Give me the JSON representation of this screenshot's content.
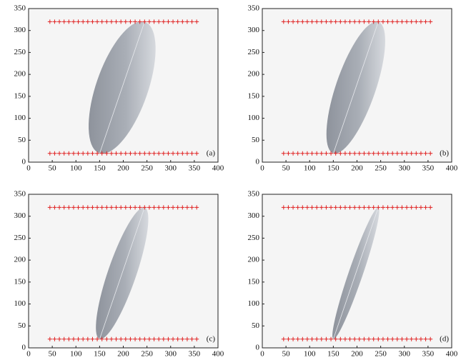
{
  "chart_data": [
    {
      "type": "scatter",
      "label": "(a)",
      "xlim": [
        0,
        400
      ],
      "ylim": [
        0,
        350
      ],
      "xticks": [
        0,
        50,
        100,
        150,
        200,
        250,
        300,
        350,
        400
      ],
      "yticks": [
        0,
        50,
        100,
        150,
        200,
        250,
        300,
        350
      ],
      "series": [
        {
          "color": "#e02020",
          "x": [
            45,
            55,
            65,
            75,
            85,
            95,
            105,
            115,
            125,
            135,
            145,
            155,
            165,
            175,
            185,
            195,
            205,
            215,
            225,
            235,
            245,
            255,
            265,
            275,
            285,
            295,
            305,
            315,
            325,
            335,
            345,
            355
          ],
          "values": [
            320,
            320,
            320,
            320,
            320,
            320,
            320,
            320,
            320,
            320,
            320,
            320,
            320,
            320,
            320,
            320,
            320,
            320,
            320,
            320,
            320,
            320,
            320,
            320,
            320,
            320,
            320,
            320,
            320,
            320,
            320,
            320
          ]
        },
        {
          "color": "#e02020",
          "x": [
            45,
            55,
            65,
            75,
            85,
            95,
            105,
            115,
            125,
            135,
            145,
            155,
            165,
            175,
            185,
            195,
            205,
            215,
            225,
            235,
            245,
            255,
            265,
            275,
            285,
            295,
            305,
            315,
            325,
            335,
            345,
            355
          ],
          "values": [
            20,
            20,
            20,
            20,
            20,
            20,
            20,
            20,
            20,
            20,
            20,
            20,
            20,
            20,
            20,
            20,
            20,
            20,
            20,
            20,
            20,
            20,
            20,
            20,
            20,
            20,
            20,
            20,
            20,
            20,
            20,
            20
          ]
        }
      ],
      "line": {
        "x": [
          150,
          245
        ],
        "values": [
          20,
          320
        ]
      },
      "ellipse": {
        "cx": 197.5,
        "cy": 170,
        "semi_major": 157,
        "semi_minor": 55
      }
    },
    {
      "type": "scatter",
      "label": "(b)",
      "xlim": [
        0,
        400
      ],
      "ylim": [
        0,
        350
      ],
      "xticks": [
        0,
        50,
        100,
        150,
        200,
        250,
        300,
        350,
        400
      ],
      "yticks": [
        0,
        50,
        100,
        150,
        200,
        250,
        300,
        350
      ],
      "series": [
        {
          "color": "#e02020",
          "x": [
            45,
            55,
            65,
            75,
            85,
            95,
            105,
            115,
            125,
            135,
            145,
            155,
            165,
            175,
            185,
            195,
            205,
            215,
            225,
            235,
            245,
            255,
            265,
            275,
            285,
            295,
            305,
            315,
            325,
            335,
            345,
            355
          ],
          "values": [
            320,
            320,
            320,
            320,
            320,
            320,
            320,
            320,
            320,
            320,
            320,
            320,
            320,
            320,
            320,
            320,
            320,
            320,
            320,
            320,
            320,
            320,
            320,
            320,
            320,
            320,
            320,
            320,
            320,
            320,
            320,
            320
          ]
        },
        {
          "color": "#e02020",
          "x": [
            45,
            55,
            65,
            75,
            85,
            95,
            105,
            115,
            125,
            135,
            145,
            155,
            165,
            175,
            185,
            195,
            205,
            215,
            225,
            235,
            245,
            255,
            265,
            275,
            285,
            295,
            305,
            315,
            325,
            335,
            345,
            355
          ],
          "values": [
            20,
            20,
            20,
            20,
            20,
            20,
            20,
            20,
            20,
            20,
            20,
            20,
            20,
            20,
            20,
            20,
            20,
            20,
            20,
            20,
            20,
            20,
            20,
            20,
            20,
            20,
            20,
            20,
            20,
            20,
            20,
            20
          ]
        }
      ],
      "line": {
        "x": [
          150,
          245
        ],
        "values": [
          20,
          320
        ]
      },
      "ellipse": {
        "cx": 197.5,
        "cy": 170,
        "semi_major": 157,
        "semi_minor": 42
      }
    },
    {
      "type": "scatter",
      "label": "(c)",
      "xlim": [
        0,
        400
      ],
      "ylim": [
        0,
        350
      ],
      "xticks": [
        0,
        50,
        100,
        150,
        200,
        250,
        300,
        350,
        400
      ],
      "yticks": [
        0,
        50,
        100,
        150,
        200,
        250,
        300,
        350
      ],
      "series": [
        {
          "color": "#e02020",
          "x": [
            45,
            55,
            65,
            75,
            85,
            95,
            105,
            115,
            125,
            135,
            145,
            155,
            165,
            175,
            185,
            195,
            205,
            215,
            225,
            235,
            245,
            255,
            265,
            275,
            285,
            295,
            305,
            315,
            325,
            335,
            345,
            355
          ],
          "values": [
            320,
            320,
            320,
            320,
            320,
            320,
            320,
            320,
            320,
            320,
            320,
            320,
            320,
            320,
            320,
            320,
            320,
            320,
            320,
            320,
            320,
            320,
            320,
            320,
            320,
            320,
            320,
            320,
            320,
            320,
            320,
            320
          ]
        },
        {
          "color": "#e02020",
          "x": [
            45,
            55,
            65,
            75,
            85,
            95,
            105,
            115,
            125,
            135,
            145,
            155,
            165,
            175,
            185,
            195,
            205,
            215,
            225,
            235,
            245,
            255,
            265,
            275,
            285,
            295,
            305,
            315,
            325,
            335,
            345,
            355
          ],
          "values": [
            20,
            20,
            20,
            20,
            20,
            20,
            20,
            20,
            20,
            20,
            20,
            20,
            20,
            20,
            20,
            20,
            20,
            20,
            20,
            20,
            20,
            20,
            20,
            20,
            20,
            20,
            20,
            20,
            20,
            20,
            20,
            20
          ]
        }
      ],
      "line": {
        "x": [
          150,
          245
        ],
        "values": [
          20,
          320
        ]
      },
      "ellipse": {
        "cx": 197.5,
        "cy": 170,
        "semi_major": 157,
        "semi_minor": 30
      }
    },
    {
      "type": "scatter",
      "label": "(d)",
      "xlim": [
        0,
        400
      ],
      "ylim": [
        0,
        350
      ],
      "xticks": [
        0,
        50,
        100,
        150,
        200,
        250,
        300,
        350,
        400
      ],
      "yticks": [
        0,
        50,
        100,
        150,
        200,
        250,
        300,
        350
      ],
      "series": [
        {
          "color": "#e02020",
          "x": [
            45,
            55,
            65,
            75,
            85,
            95,
            105,
            115,
            125,
            135,
            145,
            155,
            165,
            175,
            185,
            195,
            205,
            215,
            225,
            235,
            245,
            255,
            265,
            275,
            285,
            295,
            305,
            315,
            325,
            335,
            345,
            355
          ],
          "values": [
            320,
            320,
            320,
            320,
            320,
            320,
            320,
            320,
            320,
            320,
            320,
            320,
            320,
            320,
            320,
            320,
            320,
            320,
            320,
            320,
            320,
            320,
            320,
            320,
            320,
            320,
            320,
            320,
            320,
            320,
            320,
            320
          ]
        },
        {
          "color": "#e02020",
          "x": [
            45,
            55,
            65,
            75,
            85,
            95,
            105,
            115,
            125,
            135,
            145,
            155,
            165,
            175,
            185,
            195,
            205,
            215,
            225,
            235,
            245,
            255,
            265,
            275,
            285,
            295,
            305,
            315,
            325,
            335,
            345,
            355
          ],
          "values": [
            20,
            20,
            20,
            20,
            20,
            20,
            20,
            20,
            20,
            20,
            20,
            20,
            20,
            20,
            20,
            20,
            20,
            20,
            20,
            20,
            20,
            20,
            20,
            20,
            20,
            20,
            20,
            20,
            20,
            20,
            20,
            20
          ]
        }
      ],
      "line": {
        "x": [
          150,
          245
        ],
        "values": [
          20,
          320
        ]
      },
      "ellipse": {
        "cx": 197.5,
        "cy": 170,
        "semi_major": 157,
        "semi_minor": 15
      }
    }
  ]
}
